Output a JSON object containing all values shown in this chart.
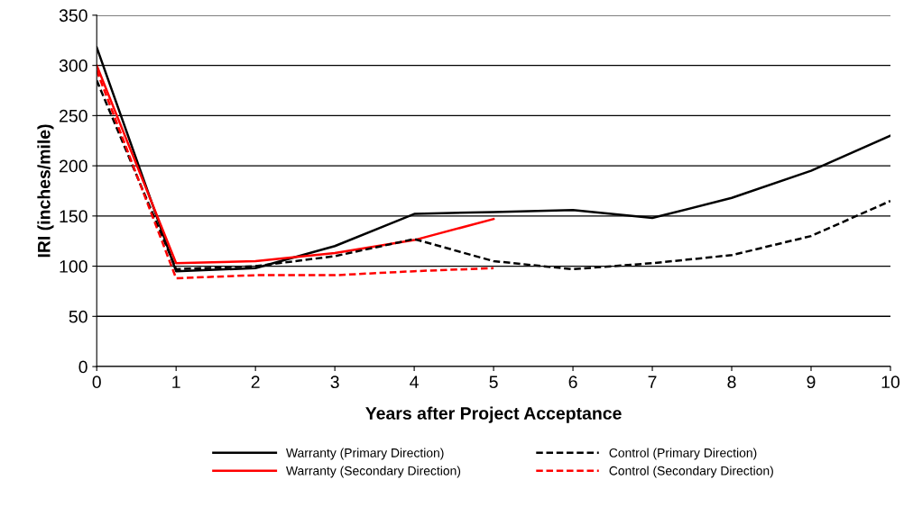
{
  "chart_data": {
    "type": "line",
    "xlabel": "Years after Project Acceptance",
    "ylabel": "IRI (inches/mile)",
    "x": [
      0,
      1,
      2,
      3,
      4,
      5,
      6,
      7,
      8,
      9,
      10
    ],
    "series": [
      {
        "name": "Warranty (Primary Direction)",
        "color": "#000000",
        "line_style": "solid",
        "values": [
          318,
          95,
          98,
          120,
          152,
          154,
          156,
          148,
          168,
          195,
          230
        ]
      },
      {
        "name": "Warranty (Secondary Direction)",
        "color": "#ff0000",
        "line_style": "solid",
        "values": [
          300,
          103,
          105,
          113,
          126,
          147,
          null,
          null,
          null,
          null,
          null
        ]
      },
      {
        "name": "Control (Primary Direction)",
        "color": "#000000",
        "line_style": "dashed",
        "values": [
          285,
          97,
          100,
          110,
          127,
          105,
          97,
          103,
          111,
          130,
          165
        ]
      },
      {
        "name": "Control (Secondary Direction)",
        "color": "#ff0000",
        "line_style": "dashed",
        "values": [
          295,
          88,
          91,
          91,
          95,
          98,
          null,
          null,
          null,
          null,
          null
        ]
      }
    ],
    "xlim": [
      0,
      10
    ],
    "xticks": [
      0,
      1,
      2,
      3,
      4,
      5,
      6,
      7,
      8,
      9,
      10
    ],
    "ylim": [
      0,
      350
    ],
    "yticks": [
      0,
      50,
      100,
      150,
      200,
      250,
      300,
      350
    ],
    "grid": "y",
    "legend": "bottom",
    "marker": "none"
  }
}
